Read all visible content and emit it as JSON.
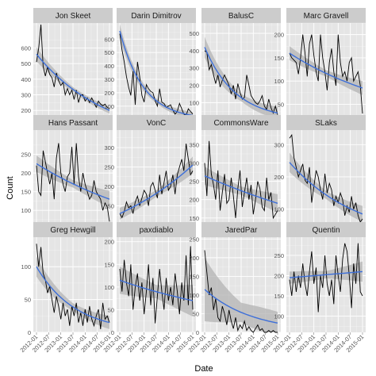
{
  "figure": {
    "ylabel": "Count",
    "xlabel": "Date",
    "x_ticks": [
      "2012-01",
      "2012-07",
      "2013-01",
      "2013-07",
      "2014-01",
      "2014-07",
      "2015-01"
    ]
  },
  "colors": {
    "panel_bg": "#e5e5e5",
    "strip_bg": "#cccccc",
    "grid": "#ffffff",
    "line": "#000000",
    "smooth": "#3d6fd9",
    "band": "#b3b3b3",
    "tick_text": "#555555"
  },
  "chart_data": [
    {
      "type": "line",
      "title": "Jon Skeet",
      "x_range": [
        "2012-01",
        "2015-01"
      ],
      "ylim": [
        150,
        760
      ],
      "yticks": [
        200,
        300,
        400,
        500,
        600
      ],
      "series": [
        {
          "values": [
            510,
            600,
            750,
            480,
            420,
            480,
            430,
            410,
            350,
            440,
            390,
            360,
            380,
            300,
            340,
            300,
            330,
            270,
            330,
            250,
            300,
            300,
            260,
            280,
            250,
            280,
            250,
            220,
            260,
            240,
            230,
            240,
            220,
            210
          ]
        }
      ],
      "smooth": {
        "start": 560,
        "end": 200,
        "band_start": 45,
        "band_end": 20
      }
    },
    {
      "type": "line",
      "title": "Darin Dimitrov",
      "x_range": [
        "2012-01",
        "2015-01"
      ],
      "ylim": [
        10,
        720
      ],
      "yticks": [
        100,
        200,
        300,
        400,
        500,
        600
      ],
      "series": [
        {
          "values": [
            640,
            520,
            430,
            320,
            240,
            180,
            360,
            110,
            430,
            320,
            180,
            130,
            260,
            230,
            210,
            200,
            140,
            100,
            230,
            130,
            120,
            90,
            100,
            110,
            70,
            40,
            60,
            120,
            80,
            40,
            30,
            80,
            60,
            40
          ]
        }
      ],
      "smooth": {
        "start": 660,
        "end": 30,
        "band_start": 50,
        "band_end": 25
      }
    },
    {
      "type": "line",
      "title": "BalusC",
      "x_range": [
        "2012-01",
        "2015-01"
      ],
      "ylim": [
        10,
        560
      ],
      "yticks": [
        100,
        200,
        300,
        400,
        500
      ],
      "series": [
        {
          "values": [
            400,
            390,
            290,
            320,
            260,
            210,
            260,
            190,
            230,
            260,
            230,
            200,
            150,
            200,
            120,
            210,
            160,
            120,
            130,
            260,
            200,
            140,
            120,
            100,
            90,
            110,
            140,
            80,
            60,
            120,
            70,
            40,
            80,
            30
          ]
        }
      ],
      "smooth": {
        "start": 420,
        "end": 40,
        "band_start": 60,
        "band_end": 35
      }
    },
    {
      "type": "line",
      "title": "Marc Gravell",
      "x_range": [
        "2012-01",
        "2015-01"
      ],
      "ylim": [
        20,
        225
      ],
      "yticks": [
        50,
        100,
        150,
        200
      ],
      "series": [
        {
          "values": [
            160,
            150,
            145,
            140,
            115,
            150,
            200,
            160,
            110,
            180,
            200,
            155,
            120,
            100,
            200,
            150,
            120,
            80,
            140,
            170,
            120,
            90,
            200,
            140,
            110,
            120,
            100,
            140,
            150,
            100,
            110,
            120,
            90,
            30
          ]
        }
      ],
      "smooth": {
        "start": 160,
        "end": 85,
        "band_start": 15,
        "band_end": 15
      }
    },
    {
      "type": "line",
      "title": "Hans Passant",
      "x_range": [
        "2012-01",
        "2015-01"
      ],
      "ylim": [
        60,
        315
      ],
      "yticks": [
        100,
        150,
        200,
        250
      ],
      "series": [
        {
          "values": [
            220,
            150,
            140,
            260,
            230,
            200,
            170,
            200,
            130,
            240,
            280,
            200,
            170,
            150,
            190,
            200,
            270,
            170,
            280,
            190,
            150,
            200,
            170,
            150,
            130,
            140,
            180,
            150,
            140,
            130,
            100,
            120,
            110,
            70
          ]
        }
      ],
      "smooth": {
        "start": 225,
        "end": 130,
        "band_start": 22,
        "band_end": 22
      }
    },
    {
      "type": "line",
      "title": "VonC",
      "x_range": [
        "2012-01",
        "2015-01"
      ],
      "ylim": [
        100,
        345
      ],
      "yticks": [
        150,
        200,
        250,
        300
      ],
      "series": [
        {
          "values": [
            130,
            120,
            135,
            160,
            145,
            150,
            130,
            160,
            175,
            150,
            170,
            190,
            180,
            150,
            200,
            210,
            190,
            170,
            230,
            180,
            210,
            240,
            190,
            200,
            230,
            180,
            230,
            250,
            270,
            240,
            310,
            270,
            230,
            240
          ]
        }
      ],
      "smooth": {
        "start": 130,
        "end": 255,
        "band_start": 15,
        "band_end": 22
      }
    },
    {
      "type": "line",
      "title": "CommonsWare",
      "x_range": [
        "2012-01",
        "2015-01"
      ],
      "ylim": [
        130,
        390
      ],
      "yticks": [
        150,
        200,
        250,
        300,
        350
      ],
      "series": [
        {
          "values": [
            300,
            210,
            360,
            270,
            240,
            200,
            280,
            170,
            220,
            270,
            190,
            200,
            260,
            210,
            150,
            230,
            280,
            180,
            220,
            260,
            200,
            240,
            160,
            200,
            250,
            230,
            180,
            170,
            260,
            200,
            220,
            150,
            160,
            170
          ]
        }
      ],
      "smooth": {
        "start": 265,
        "end": 190,
        "band_start": 25,
        "band_end": 25
      }
    },
    {
      "type": "line",
      "title": "SLaks",
      "x_range": [
        "2012-01",
        "2015-01"
      ],
      "ylim": [
        50,
        345
      ],
      "yticks": [
        100,
        200,
        300
      ],
      "series": [
        {
          "values": [
            320,
            330,
            260,
            230,
            200,
            220,
            240,
            190,
            180,
            230,
            120,
            170,
            220,
            200,
            160,
            130,
            210,
            150,
            180,
            160,
            110,
            140,
            120,
            150,
            130,
            80,
            110,
            90,
            140,
            100,
            120,
            80,
            60,
            70
          ]
        }
      ],
      "smooth": {
        "start": 245,
        "end": 85,
        "band_start": 30,
        "band_end": 25
      }
    },
    {
      "type": "line",
      "title": "Greg Hewgill",
      "x_range": [
        "2012-01",
        "2015-01"
      ],
      "ylim": [
        0,
        145
      ],
      "yticks": [
        0,
        50,
        100
      ],
      "series": [
        {
          "values": [
            135,
            100,
            130,
            90,
            80,
            60,
            70,
            50,
            30,
            55,
            40,
            20,
            45,
            25,
            35,
            10,
            40,
            25,
            45,
            15,
            30,
            10,
            35,
            15,
            40,
            20,
            10,
            25,
            35,
            5,
            45,
            20,
            25,
            15
          ]
        }
      ],
      "smooth": {
        "start": 100,
        "end": 15,
        "band_start": 15,
        "band_end": 10
      }
    },
    {
      "type": "line",
      "title": "paxdiablo",
      "x_range": [
        "2012-01",
        "2015-01"
      ],
      "ylim": [
        0,
        210
      ],
      "yticks": [
        0,
        50,
        100,
        150,
        200
      ],
      "series": [
        {
          "values": [
            140,
            90,
            160,
            110,
            80,
            150,
            50,
            100,
            130,
            70,
            110,
            40,
            90,
            150,
            60,
            120,
            20,
            80,
            140,
            90,
            50,
            120,
            70,
            100,
            60,
            130,
            90,
            40,
            110,
            70,
            170,
            60,
            190,
            50
          ]
        }
      ],
      "smooth": {
        "start": 115,
        "end": 70,
        "band_start": 30,
        "band_end": 35
      }
    },
    {
      "type": "line",
      "title": "JaredPar",
      "x_range": [
        "2012-01",
        "2015-01"
      ],
      "ylim": [
        0,
        255
      ],
      "yticks": [
        0,
        50,
        100,
        150,
        200,
        250
      ],
      "series": [
        {
          "values": [
            220,
            160,
            100,
            120,
            60,
            90,
            40,
            30,
            70,
            50,
            20,
            60,
            30,
            10,
            40,
            5,
            20,
            10,
            30,
            5,
            15,
            5,
            0,
            10,
            20,
            5,
            10,
            0,
            0,
            5,
            0,
            5,
            0,
            0
          ]
        }
      ],
      "smooth": {
        "start": 115,
        "end": 25,
        "band_start": 85,
        "band_end": 30
      }
    },
    {
      "type": "line",
      "title": "Quentin",
      "x_range": [
        "2012-01",
        "2015-01"
      ],
      "ylim": [
        60,
        295
      ],
      "yticks": [
        100,
        150,
        200,
        250
      ],
      "series": [
        {
          "values": [
            190,
            150,
            210,
            160,
            200,
            170,
            230,
            180,
            150,
            210,
            260,
            180,
            220,
            110,
            200,
            170,
            250,
            180,
            150,
            190,
            130,
            250,
            200,
            160,
            240,
            280,
            260,
            200,
            120,
            230,
            180,
            280,
            160,
            150
          ]
        }
      ],
      "smooth": {
        "start": 195,
        "end": 210,
        "band_start": 15,
        "band_end": 25
      }
    }
  ]
}
